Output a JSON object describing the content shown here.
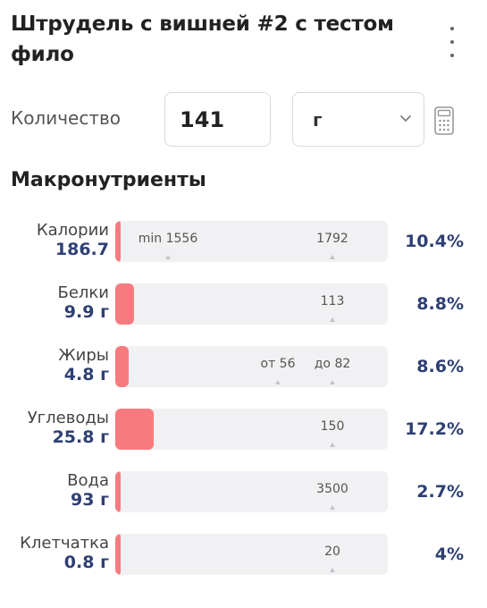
{
  "header": {
    "title": "Штрудель с вишней #2 с тестом фило",
    "menu_icon": "more-vertical-icon"
  },
  "quantity": {
    "label": "Количество",
    "value": "141",
    "unit": "г",
    "calculator_icon": "calculator-icon"
  },
  "macros": {
    "title": "Макронутриенты",
    "accent_color": "#f77b7e",
    "value_color": "#2e3f73",
    "rows": [
      {
        "name": "Калории",
        "value": "186.7",
        "fill_fraction": 0.02,
        "markers": [
          {
            "label": "min 1556"
          },
          {
            "label": "1792"
          }
        ],
        "percent": "10.4%"
      },
      {
        "name": "Белки",
        "value": "9.9 г",
        "fill_fraction": 0.07,
        "markers": [
          {
            "label": "113"
          }
        ],
        "percent": "8.8%"
      },
      {
        "name": "Жиры",
        "value": "4.8 г",
        "fill_fraction": 0.05,
        "markers": [
          {
            "label": "от 56"
          },
          {
            "label": "до 82"
          }
        ],
        "percent": "8.6%"
      },
      {
        "name": "Углеводы",
        "value": "25.8 г",
        "fill_fraction": 0.14,
        "markers": [
          {
            "label": "150"
          }
        ],
        "percent": "17.2%"
      },
      {
        "name": "Вода",
        "value": "93 г",
        "fill_fraction": 0.02,
        "markers": [
          {
            "label": "3500"
          }
        ],
        "percent": "2.7%"
      },
      {
        "name": "Клетчатка",
        "value": "0.8 г",
        "fill_fraction": 0.02,
        "markers": [
          {
            "label": "20"
          }
        ],
        "percent": "4%"
      }
    ]
  }
}
